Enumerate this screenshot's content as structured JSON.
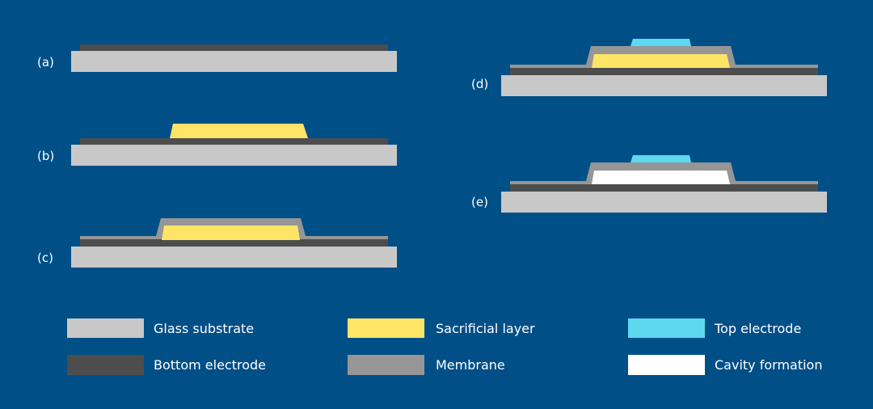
{
  "colors": {
    "background": "#004f87",
    "glass_substrate": "#c8c8c8",
    "bottom_electrode": "#4d4d4d",
    "membrane": "#969696",
    "sacrificial_layer": "#ffe566",
    "top_electrode": "#5ed8ef",
    "cavity": "#ffffff"
  },
  "steps": [
    {
      "label": "(a)"
    },
    {
      "label": "(b)"
    },
    {
      "label": "(c)"
    },
    {
      "label": "(d)"
    },
    {
      "label": "(e)"
    }
  ],
  "legend": [
    {
      "label": "Glass substrate",
      "color": "#c8c8c8"
    },
    {
      "label": "Bottom electrode",
      "color": "#4d4d4d"
    },
    {
      "label": "Sacrificial layer",
      "color": "#ffe566"
    },
    {
      "label": "Membrane",
      "color": "#969696"
    },
    {
      "label": "Top electrode",
      "color": "#5ed8ef"
    },
    {
      "label": "Cavity formation",
      "color": "#ffffff"
    }
  ]
}
